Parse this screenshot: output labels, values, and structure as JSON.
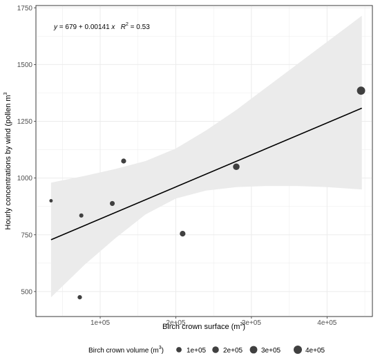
{
  "chart_data": {
    "type": "scatter",
    "title": "",
    "annotation": {
      "y_var": "y",
      "eq_mid": " = 679 + 0.00141 ",
      "x_var": "x",
      "r_label": "R",
      "r_sup": "2",
      "r_value": " = 0.53"
    },
    "xlabel": "Birch crown surface (m",
    "xlabel_sup": "2",
    "xlabel_end": ")",
    "ylabel": "Hourly concentrations by wind (pollen m",
    "ylabel_sup": "3",
    "xlim": [
      15000,
      460000
    ],
    "ylim": [
      390,
      1760
    ],
    "x_ticks": [
      100000,
      200000,
      300000,
      400000
    ],
    "x_tick_labels": [
      "1e+05",
      "2e+05",
      "3e+05",
      "4e+05"
    ],
    "y_ticks": [
      500,
      750,
      1000,
      1250,
      1500,
      1750
    ],
    "y_tick_labels": [
      "500",
      "750",
      "1000",
      "1250",
      "1500",
      "1750"
    ],
    "points": [
      {
        "x": 35000,
        "y": 900,
        "size": 10000
      },
      {
        "x": 73000,
        "y": 475,
        "size": 40000
      },
      {
        "x": 75000,
        "y": 835,
        "size": 35000
      },
      {
        "x": 116000,
        "y": 888,
        "size": 70000
      },
      {
        "x": 131000,
        "y": 1075,
        "size": 75000
      },
      {
        "x": 209000,
        "y": 755,
        "size": 120000
      },
      {
        "x": 280000,
        "y": 1050,
        "size": 200000
      },
      {
        "x": 445000,
        "y": 1385,
        "size": 390000
      }
    ],
    "regression": {
      "intercept": 679,
      "slope": 0.00141,
      "x_range": [
        35000,
        446000
      ]
    },
    "confidence_band": [
      {
        "x": 35000,
        "lo": 475,
        "hi": 980
      },
      {
        "x": 80000,
        "lo": 620,
        "hi": 1010
      },
      {
        "x": 120000,
        "lo": 735,
        "hi": 1040
      },
      {
        "x": 160000,
        "lo": 840,
        "hi": 1075
      },
      {
        "x": 200000,
        "lo": 910,
        "hi": 1130
      },
      {
        "x": 240000,
        "lo": 945,
        "hi": 1210
      },
      {
        "x": 280000,
        "lo": 960,
        "hi": 1300
      },
      {
        "x": 320000,
        "lo": 965,
        "hi": 1400
      },
      {
        "x": 360000,
        "lo": 965,
        "hi": 1500
      },
      {
        "x": 400000,
        "lo": 960,
        "hi": 1600
      },
      {
        "x": 446000,
        "lo": 950,
        "hi": 1715
      }
    ],
    "legend": {
      "title": "Birch crown volume (m",
      "title_sup": "3",
      "title_end": ")",
      "placement": "bottom",
      "entries": [
        {
          "label": "1e+05",
          "size": 100000
        },
        {
          "label": "2e+05",
          "size": 200000
        },
        {
          "label": "3e+05",
          "size": 300000
        },
        {
          "label": "4e+05",
          "size": 400000
        }
      ]
    },
    "grid": true,
    "colors": {
      "points": "#404040",
      "line": "#000000",
      "band": "#ebebeb",
      "grid": "#ebebeb"
    }
  }
}
